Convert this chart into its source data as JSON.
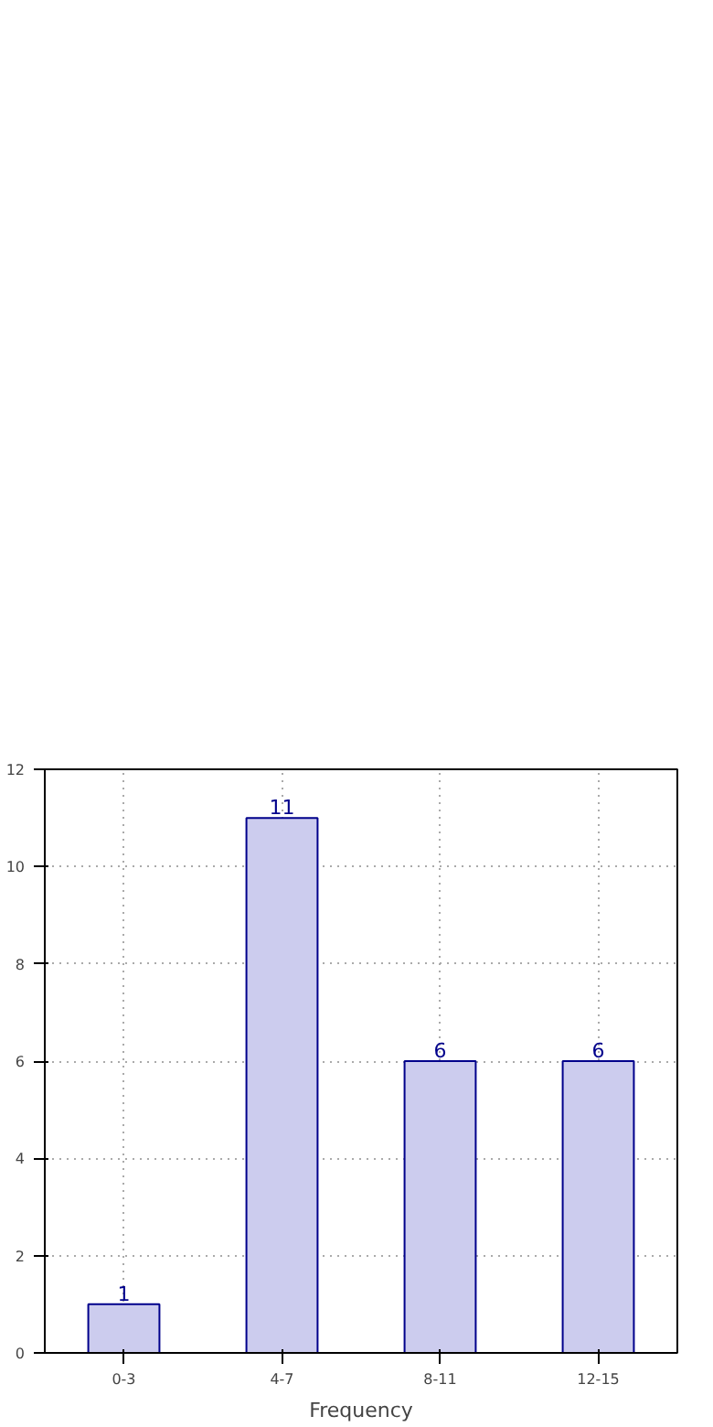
{
  "chart_data": {
    "type": "bar",
    "xlabel": "Frequency",
    "categories": [
      "0-3",
      "4-7",
      "8-11",
      "12-15"
    ],
    "values": [
      1,
      11,
      6,
      6
    ],
    "color": "#ccccee",
    "ylim": [
      0,
      12
    ],
    "yticks": [
      0,
      2,
      4,
      6,
      8,
      10,
      12
    ],
    "grid": true,
    "data_labels": true
  }
}
